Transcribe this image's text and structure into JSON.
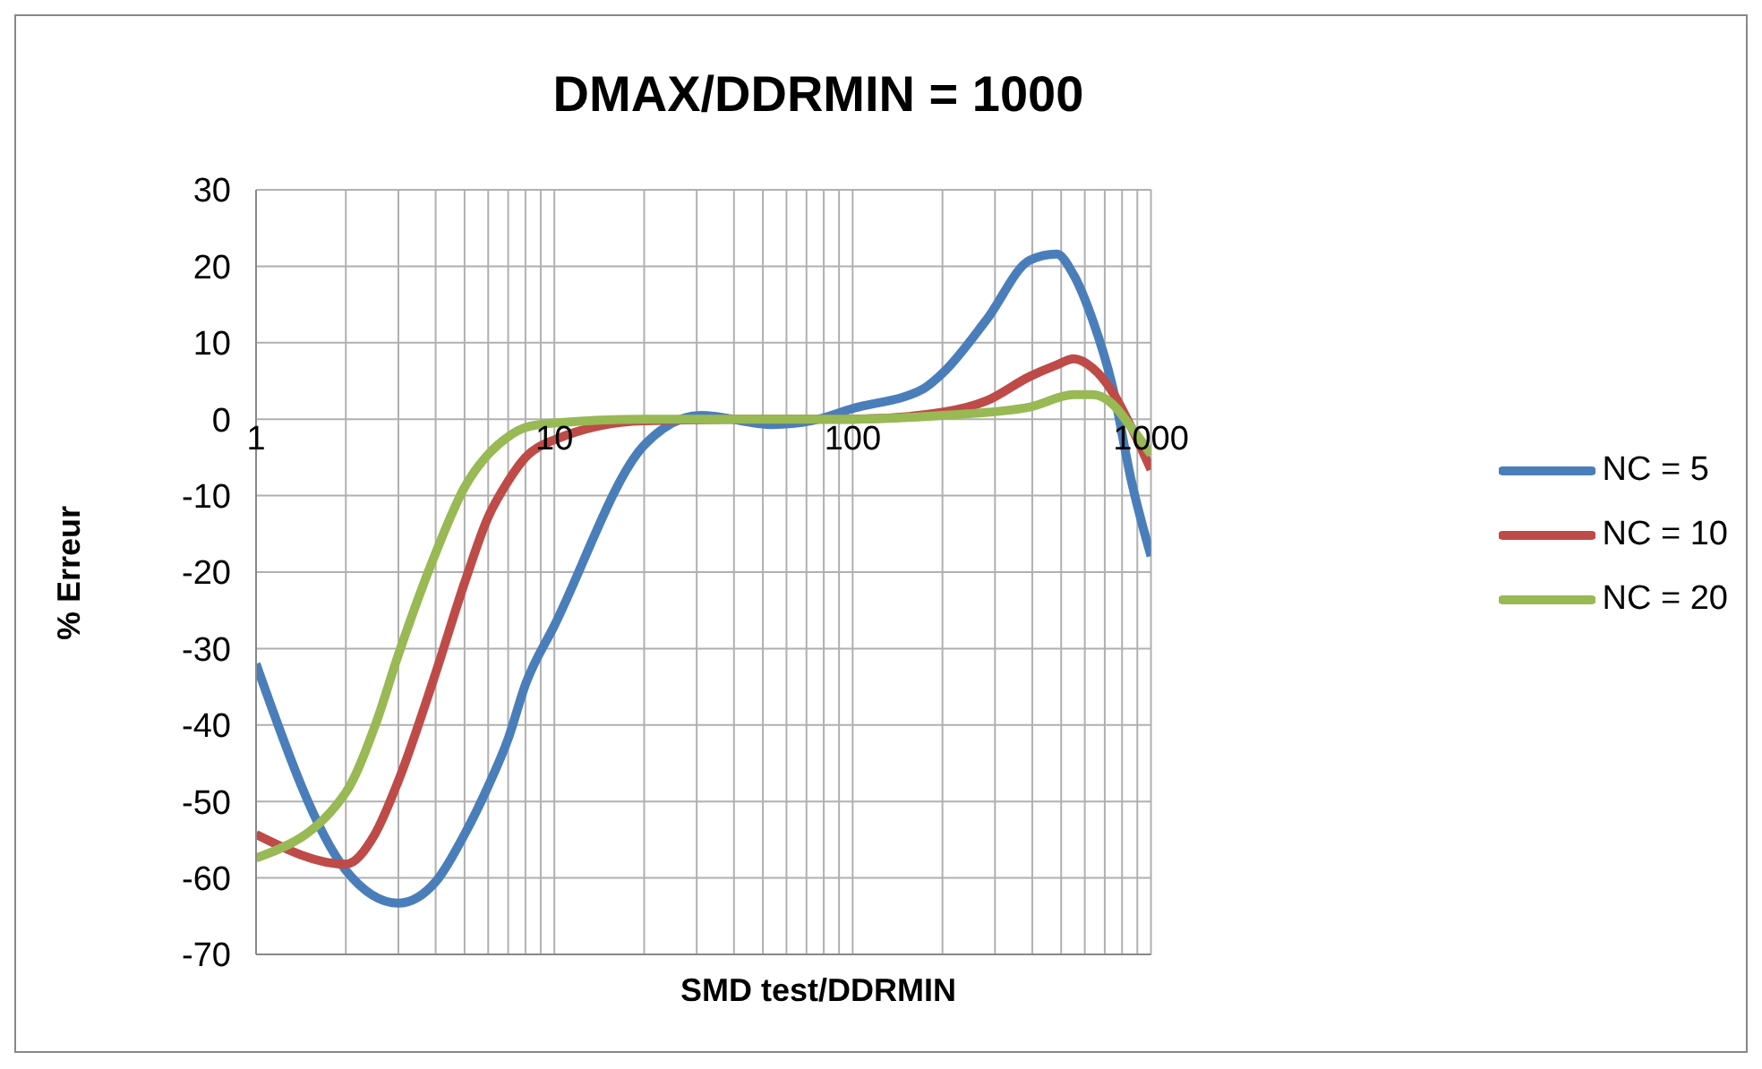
{
  "chart_data": {
    "type": "line",
    "title": "DMAX/DDRMIN = 1000",
    "xlabel": "SMD test/DDRMIN",
    "ylabel": "% Erreur",
    "log": "x",
    "xlim": [
      1,
      1000
    ],
    "xticks": [
      1,
      10,
      100,
      1000
    ],
    "ylim": [
      -70,
      30
    ],
    "yticks": [
      -70,
      -60,
      -50,
      -40,
      -30,
      -20,
      -10,
      0,
      10,
      20,
      30
    ],
    "grid": true,
    "legend": "right",
    "marker": "none",
    "line_style": "solid",
    "series": [
      {
        "name": "NC = 5",
        "color": "#4a7ebb",
        "x": [
          1,
          2,
          3,
          4,
          5,
          6,
          7,
          8,
          10,
          20,
          31,
          54,
          73,
          100,
          173,
          200,
          281,
          393,
          483,
          550,
          637,
          742,
          860,
          1000
        ],
        "values": [
          -32,
          -59,
          -63.3,
          -60.5,
          -54.3,
          -48,
          -41.8,
          -34.7,
          -27,
          -3.4,
          0.5,
          -0.7,
          -0.2,
          1.4,
          4,
          6,
          13,
          20.8,
          21.6,
          18.9,
          13,
          4.4,
          -8.1,
          -17.9
        ]
      },
      {
        "name": "NC = 10",
        "color": "#be4b48",
        "x": [
          1,
          2,
          2.5,
          3,
          4,
          5,
          6,
          7,
          8,
          10,
          20,
          50,
          100,
          200,
          281,
          393,
          483,
          550,
          637,
          742,
          860,
          1000
        ],
        "values": [
          -54.3,
          -58.2,
          -54.3,
          -47.3,
          -33.2,
          -21.4,
          -12.8,
          -8.1,
          -5,
          -2.7,
          -0.2,
          0,
          0,
          0.9,
          2.4,
          5.6,
          7.1,
          7.9,
          6.7,
          3.6,
          -1.1,
          -6.6
        ]
      },
      {
        "name": "NC = 20",
        "color": "#98b954",
        "x": [
          1,
          2,
          2.5,
          3,
          4,
          5,
          6,
          7,
          8,
          10,
          20,
          50,
          100,
          200,
          393,
          550,
          637,
          742,
          860,
          1000
        ],
        "values": [
          -57.4,
          -48.8,
          -40.2,
          -30.8,
          -17.5,
          -8.9,
          -4.6,
          -2.3,
          -1.1,
          -0.5,
          0,
          0,
          0,
          0.5,
          1.6,
          3.2,
          3.2,
          2,
          -1.1,
          -4.6
        ]
      }
    ]
  }
}
